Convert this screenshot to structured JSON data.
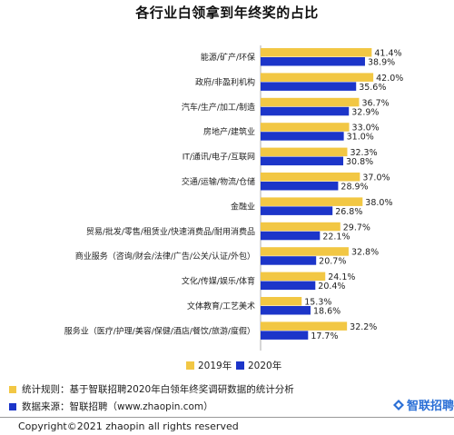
{
  "chart_data": {
    "type": "bar",
    "orientation": "horizontal",
    "title": "各行业白领拿到年终奖的占比",
    "categories": [
      "能源/矿产/环保",
      "政府/非盈利机构",
      "汽车/生产/加工/制造",
      "房地产/建筑业",
      "IT/通讯/电子/互联网",
      "交通/运输/物流/仓储",
      "金融业",
      "贸易/批发/零售/租赁业/快速消费品/耐用消费品",
      "商业服务（咨询/财会/法律/广告/公关/认证/外包）",
      "文化/传媒/娱乐/体育",
      "文体教育/工艺美术",
      "服务业（医疗/护理/美容/保健/酒店/餐饮/旅游/度假）"
    ],
    "series": [
      {
        "name": "2019年",
        "color": "#f2c744",
        "values": [
          41.4,
          42.0,
          36.7,
          33.0,
          32.3,
          37.0,
          38.0,
          29.7,
          32.8,
          24.1,
          15.3,
          32.2
        ],
        "labels": [
          "41.4%",
          "42.0%",
          "36.7%",
          "33.0%",
          "32.3%",
          "37.0%",
          "38.0%",
          "29.7%",
          "32.8%",
          "24.1%",
          "15.3%",
          "32.2%"
        ]
      },
      {
        "name": "2020年",
        "color": "#1c35c9",
        "values": [
          38.9,
          35.6,
          32.9,
          31.0,
          30.8,
          28.9,
          26.8,
          22.1,
          20.7,
          20.4,
          18.6,
          17.7
        ],
        "labels": [
          "38.9%",
          "35.6%",
          "32.9%",
          "31.0%",
          "30.8%",
          "28.9%",
          "26.8%",
          "22.1%",
          "20.7%",
          "20.4%",
          "18.6%",
          "17.7%"
        ]
      }
    ],
    "xlim": [
      0,
      45
    ],
    "grid": false,
    "legend_position": "bottom-center"
  },
  "footer": {
    "rule_text": "统计规则：基于智联招聘2020年白领年终奖调研数据的统计分析",
    "source_text": "数据来源：智联招聘（www.zhaopin.com）",
    "rule_color": "#f2c744",
    "source_color": "#1c35c9",
    "brand": "智联招聘",
    "brand_color": "#2a6fd6",
    "brand_icon": "zhaopin-logo-icon",
    "copyright": "Copyright©2021 zhaopin all rights reserved"
  }
}
